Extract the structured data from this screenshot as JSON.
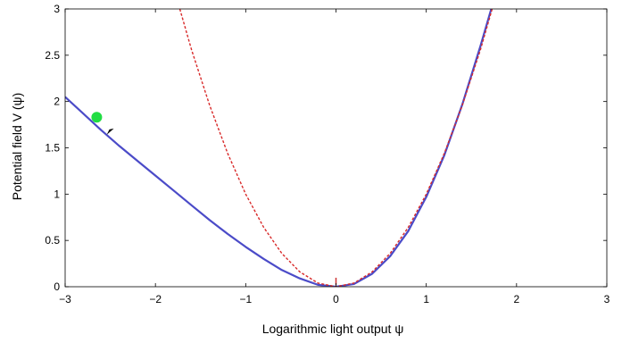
{
  "chart_data": {
    "type": "line",
    "title": "",
    "xlabel": "Logarithmic light output ψ",
    "ylabel": "Potential field V (ψ)",
    "xlim": [
      -3,
      3
    ],
    "ylim": [
      0,
      3
    ],
    "x_ticks": [
      "−3",
      "−2",
      "−1",
      "0",
      "1",
      "2",
      "3"
    ],
    "y_ticks": [
      "0",
      "0.5",
      "1",
      "1.5",
      "2",
      "2.5",
      "3"
    ],
    "grid": false,
    "legend": "none",
    "series": [
      {
        "style": "solid",
        "color": "#4b4bc8",
        "x": [
          -3.0,
          -2.8,
          -2.6,
          -2.4,
          -2.2,
          -2.0,
          -1.8,
          -1.6,
          -1.4,
          -1.2,
          -1.0,
          -0.8,
          -0.6,
          -0.4,
          -0.2,
          0.0,
          0.2,
          0.4,
          0.6,
          0.8,
          1.0,
          1.2,
          1.4,
          1.6,
          1.72
        ],
        "y": [
          2.05,
          1.87,
          1.69,
          1.52,
          1.36,
          1.2,
          1.04,
          0.88,
          0.72,
          0.57,
          0.43,
          0.3,
          0.18,
          0.09,
          0.02,
          0.0,
          0.03,
          0.14,
          0.33,
          0.6,
          0.97,
          1.42,
          1.97,
          2.6,
          3.0
        ]
      },
      {
        "style": "dashed",
        "color": "#d82a2a",
        "x": [
          -1.73,
          -1.6,
          -1.4,
          -1.2,
          -1.0,
          -0.8,
          -0.6,
          -0.4,
          -0.2,
          0.0,
          0.2,
          0.4,
          0.6,
          0.8,
          1.0,
          1.2,
          1.4,
          1.6,
          1.73
        ],
        "y": [
          3.0,
          2.56,
          1.96,
          1.44,
          1.0,
          0.64,
          0.36,
          0.16,
          0.04,
          0.0,
          0.04,
          0.16,
          0.36,
          0.64,
          1.0,
          1.44,
          1.96,
          2.56,
          3.0
        ]
      }
    ],
    "markers": [
      {
        "shape": "circle",
        "color": "#22dd44",
        "x": -2.65,
        "y": 1.83
      },
      {
        "shape": "arrow",
        "color": "#000000",
        "x": -2.5,
        "y": 1.68
      },
      {
        "shape": "tick",
        "color": "#cc3333",
        "x": 0.0,
        "y": 0.02
      }
    ]
  }
}
